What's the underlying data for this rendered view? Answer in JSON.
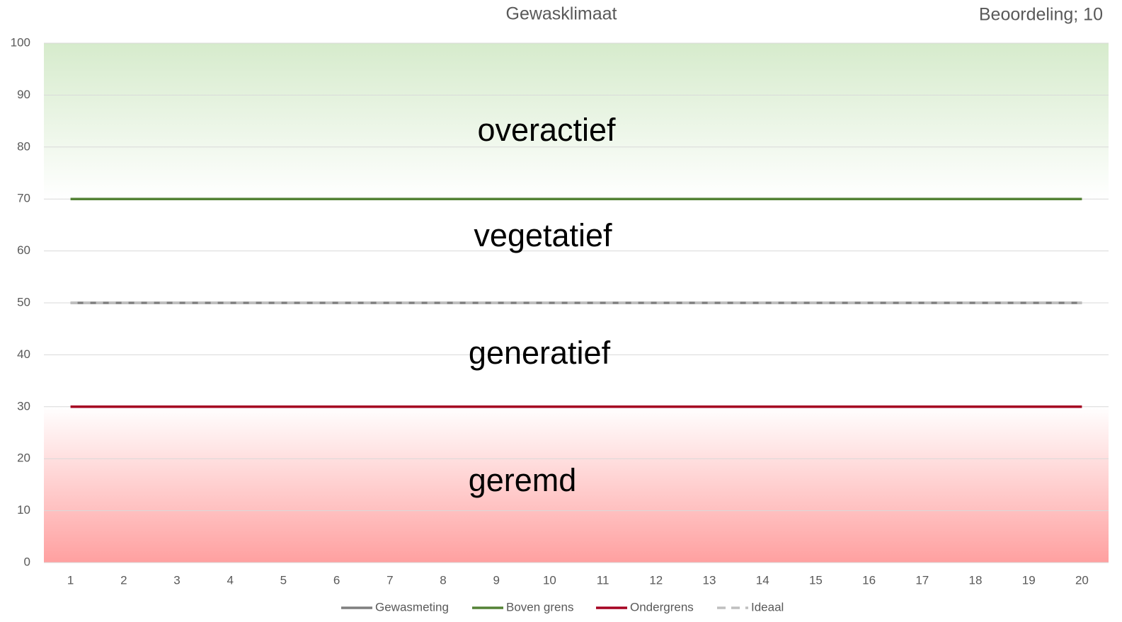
{
  "chart_data": {
    "type": "line",
    "title": "Gewasklimaat",
    "subtitle": "Beoordeling; 10",
    "annotations": [
      "overactief",
      "vegetatief",
      "generatief",
      "geremd"
    ],
    "categories": [
      "1",
      "2",
      "3",
      "4",
      "5",
      "6",
      "7",
      "8",
      "9",
      "10",
      "11",
      "12",
      "13",
      "14",
      "15",
      "16",
      "17",
      "18",
      "19",
      "20"
    ],
    "series": [
      {
        "name": "Gewasmeting",
        "color": "#7f7f7f",
        "values": [
          50,
          50,
          50,
          50,
          50,
          50,
          50,
          50,
          50,
          50,
          50,
          50,
          50,
          50,
          50,
          50,
          50,
          50,
          50,
          50
        ]
      },
      {
        "name": "Boven grens",
        "color": "#548235",
        "values": [
          70,
          70,
          70,
          70,
          70,
          70,
          70,
          70,
          70,
          70,
          70,
          70,
          70,
          70,
          70,
          70,
          70,
          70,
          70,
          70
        ]
      },
      {
        "name": "Ondergrens",
        "color": "#a50021",
        "values": [
          30,
          30,
          30,
          30,
          30,
          30,
          30,
          30,
          30,
          30,
          30,
          30,
          30,
          30,
          30,
          30,
          30,
          30,
          30,
          30
        ]
      },
      {
        "name": "Ideaal",
        "color": "#bfbfbf",
        "dashed": true,
        "values": [
          50,
          50,
          50,
          50,
          50,
          50,
          50,
          50,
          50,
          50,
          50,
          50,
          50,
          50,
          50,
          50,
          50,
          50,
          50,
          50
        ]
      }
    ],
    "ylim": [
      0,
      100
    ],
    "yticks": [
      0,
      10,
      20,
      30,
      40,
      50,
      60,
      70,
      80,
      90,
      100
    ],
    "grid": true,
    "legend": "bottom"
  }
}
